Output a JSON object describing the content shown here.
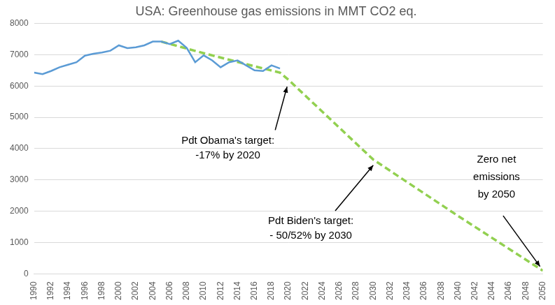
{
  "chart_data": {
    "type": "line",
    "title": "USA: Greenhouse gas emissions in MMT CO2 eq.",
    "xlim": [
      1990,
      2050
    ],
    "xticks": [
      1990,
      1992,
      1994,
      1996,
      1998,
      2000,
      2002,
      2004,
      2006,
      2008,
      2010,
      2012,
      2014,
      2016,
      2018,
      2020,
      2022,
      2024,
      2026,
      2028,
      2030,
      2032,
      2034,
      2036,
      2038,
      2040,
      2042,
      2044,
      2046,
      2048,
      2050
    ],
    "ylim": [
      0,
      8000
    ],
    "yticks": [
      0,
      1000,
      2000,
      3000,
      4000,
      5000,
      6000,
      7000,
      8000
    ],
    "grid": "y",
    "series": [
      {
        "color": "#5b9bd5",
        "line_style": "solid",
        "x": [
          1990,
          1991,
          1992,
          1993,
          1994,
          1995,
          1996,
          1997,
          1998,
          1999,
          2000,
          2001,
          2002,
          2003,
          2004,
          2005,
          2006,
          2007,
          2008,
          2009,
          2010,
          2011,
          2012,
          2013,
          2014,
          2015,
          2016,
          2017,
          2018,
          2019
        ],
        "values": [
          6430,
          6380,
          6480,
          6600,
          6680,
          6760,
          6970,
          7030,
          7070,
          7130,
          7300,
          7210,
          7240,
          7300,
          7420,
          7420,
          7340,
          7450,
          7220,
          6760,
          6980,
          6820,
          6600,
          6760,
          6820,
          6660,
          6500,
          6480,
          6660,
          6560
        ]
      },
      {
        "color": "#92d050",
        "line_style": "dashed",
        "x": [
          2005,
          2010,
          2015,
          2019,
          2020,
          2030,
          2040,
          2050
        ],
        "values": [
          7420,
          7050,
          6700,
          6430,
          6200,
          3650,
          1850,
          100
        ]
      }
    ],
    "annotations": [
      {
        "text": [
          "Pdt Obama's target:",
          "-17% by 2020"
        ]
      },
      {
        "text": [
          "Pdt Biden's target:",
          "- 50/52% by 2030"
        ]
      },
      {
        "text": [
          "Zero net",
          "emissions",
          "by 2050"
        ]
      }
    ]
  }
}
